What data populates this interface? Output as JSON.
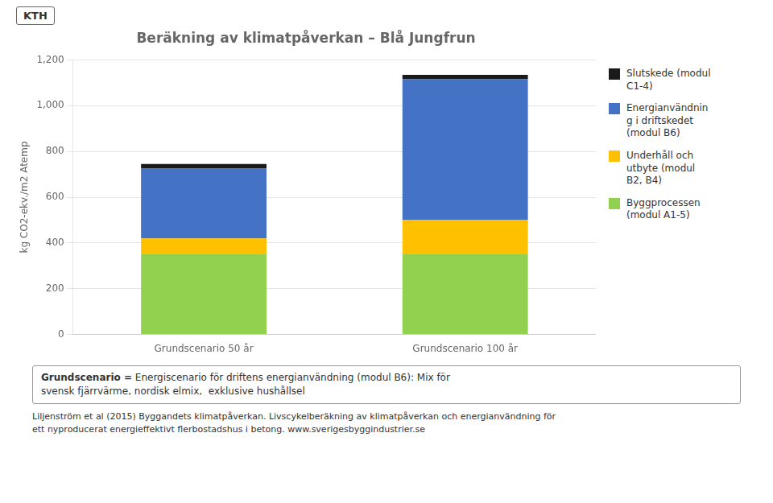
{
  "chart_data": {
    "type": "bar",
    "title": "Beräkning av klimatpåverkan – Blå Jungfrun",
    "categories": [
      "Grundscenario 50 år",
      "Grundscenario 100 år"
    ],
    "series": [
      {
        "name": "Byggprocessen\n(modul A1-5)",
        "color": "#92d050",
        "values": [
          350,
          350
        ]
      },
      {
        "name": "Underhåll och\nutbyte (modul\nB2, B4)",
        "color": "#ffc000",
        "values": [
          70,
          150
        ]
      },
      {
        "name": "Energianvändnin\ng i driftskedet\n(modul B6)",
        "color": "#4472c4",
        "values": [
          305,
          615
        ]
      },
      {
        "name": "Slutskede (modul\nC1-4)",
        "color": "#1a1a1a",
        "values": [
          20,
          20
        ]
      }
    ],
    "ylabel": "kg CO2-ekv./m2 Atemp",
    "ylim": [
      0,
      1200
    ],
    "yticks": [
      0,
      200,
      400,
      600,
      800,
      1000,
      1200
    ],
    "stacked": true,
    "grid": true,
    "legend": "right",
    "annotations": [
      "KTH",
      "Grundscenario =",
      " Energiscenario för driftens energianvändning (modul B6): Mix för\nsvensk fjärrvärme, nordisk elmix,  exklusive hushållsel",
      "Liljenström et al (2015)  Byggandets klimatpåverkan. Livscykelberäkning  av klimatpåverkan och energianvändning för",
      "ett nyproducerat energieffektivt flerbostadshus i betong.",
      "www.sverigesbyggindustrier.se"
    ]
  }
}
